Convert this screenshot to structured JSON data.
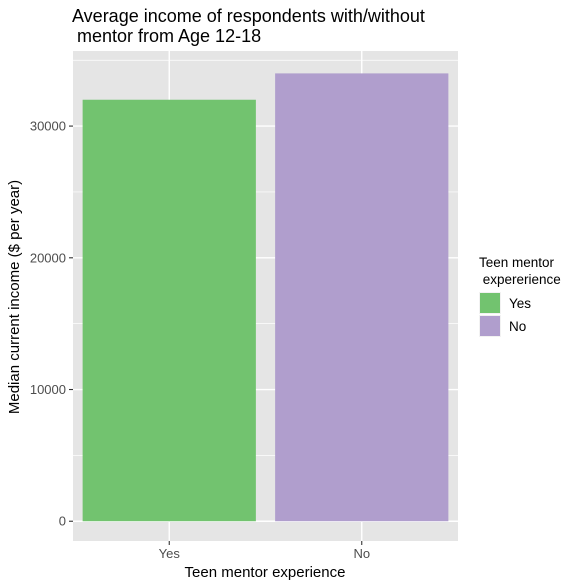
{
  "chart_data": {
    "type": "bar",
    "title_lines": [
      "Average income of respondents with/without",
      " mentor from Age 12-18"
    ],
    "xlabel": "Teen mentor experience",
    "ylabel": "Median current income ($ per year)",
    "categories": [
      "Yes",
      "No"
    ],
    "values": [
      32000,
      34000
    ],
    "colors": [
      "#72c36f",
      "#b09ecd"
    ],
    "ylim": [
      -1500,
      35700
    ],
    "yticks": [
      0,
      10000,
      20000,
      30000
    ],
    "ytick_labels": [
      "0",
      "10000",
      "20000",
      "30000"
    ],
    "grid": true,
    "panel_color": "#e5e5e5",
    "grid_color": "#ffffff",
    "legend": {
      "title_lines": [
        "Teen mentor",
        " expererience"
      ],
      "position": "right",
      "items": [
        {
          "label": "Yes",
          "color": "#72c36f"
        },
        {
          "label": "No",
          "color": "#b09ecd"
        }
      ]
    }
  }
}
